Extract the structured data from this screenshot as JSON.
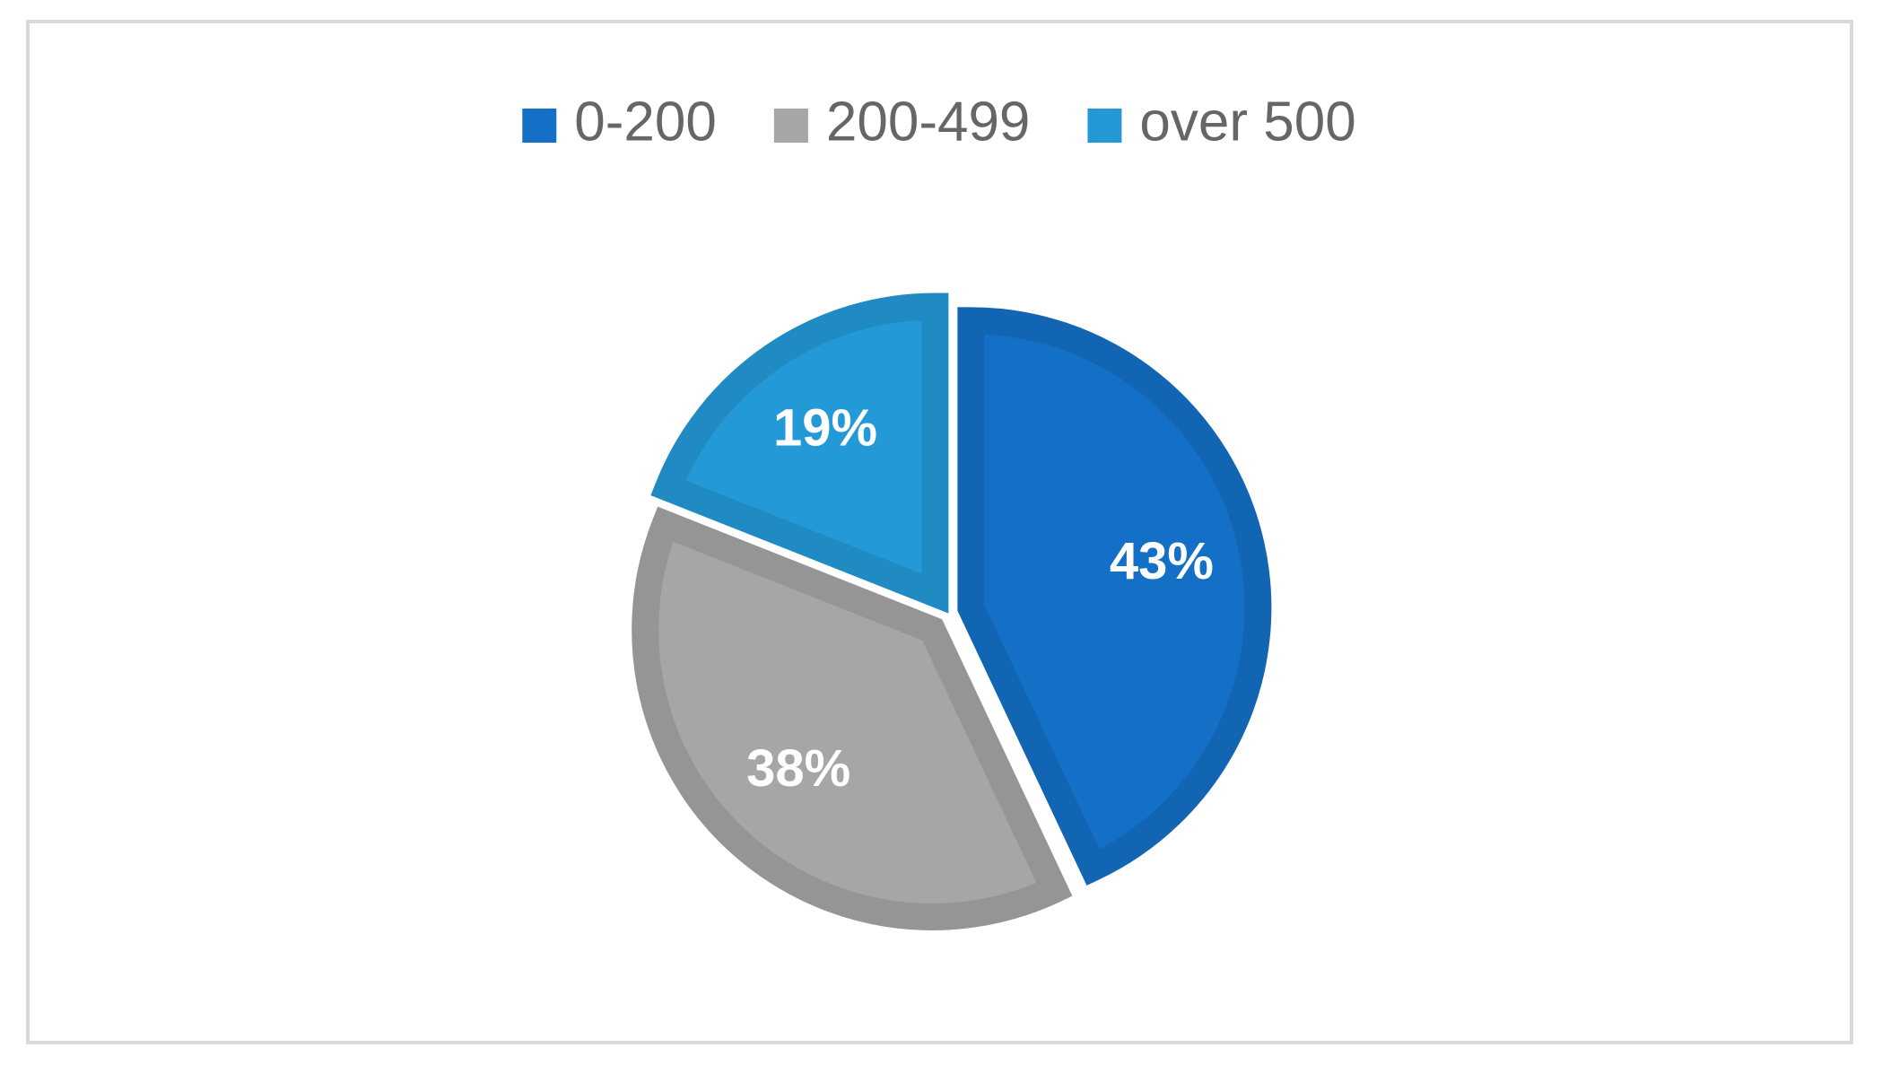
{
  "chart_data": {
    "type": "pie",
    "categories": [
      "0-200",
      "200-499",
      "over 500"
    ],
    "values": [
      43,
      38,
      19
    ],
    "value_labels": [
      "43%",
      "38%",
      "19%"
    ],
    "colors": [
      "#1470c6",
      "#a6a6a6",
      "#239ad7"
    ],
    "legend": "top"
  }
}
